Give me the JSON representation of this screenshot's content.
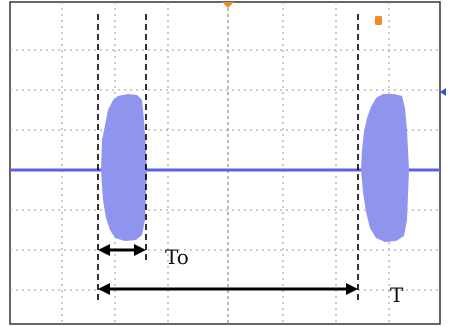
{
  "labels": {
    "pulse_width": "To",
    "period": "T"
  },
  "colors": {
    "background": "#ffffff",
    "grid": "#9a9a9a",
    "frame": "#333333",
    "signal": "#8f94ee",
    "baseline": "#5a62e0",
    "dimension": "#000000",
    "marker": "#f08a2a",
    "cursor": "#3a4fd0"
  },
  "icons": {
    "trigger_marker": "trigger-marker-icon",
    "level_marker": "level-marker-icon"
  }
}
